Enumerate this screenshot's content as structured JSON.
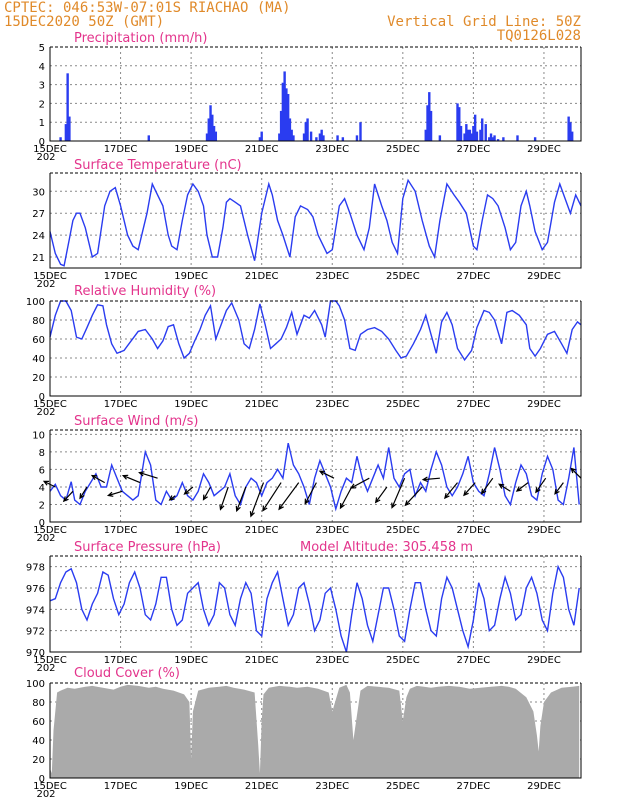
{
  "header": {
    "line1": "CPTEC:   046:53W-07:01S   RIACHAO (MA)",
    "line2": "15DEC2020 50Z (GMT)",
    "grid_note": "Vertical Grid Line: 50Z",
    "code": "TQ0126L028"
  },
  "x_axis": {
    "ticks": [
      "15DEC",
      "17DEC",
      "19DEC",
      "21DEC",
      "23DEC",
      "25DEC",
      "27DEC",
      "29DEC"
    ],
    "overflow_label": "202",
    "start_day": 15,
    "end_day": 30.05
  },
  "colors": {
    "series": "#2a3cf0",
    "cloud": "#aaaaaa",
    "title": "#e3348c",
    "header": "#e08a2a"
  },
  "chart_data": [
    {
      "type": "bar",
      "title": "Precipitation (mm/h)",
      "ylim": [
        0,
        5
      ],
      "yticks": [
        "0",
        "1",
        "2",
        "3",
        "4",
        "5"
      ],
      "x": [
        15.3,
        15.45,
        15.5,
        15.55,
        17.8,
        19.45,
        19.5,
        19.55,
        19.6,
        19.65,
        19.7,
        20.95,
        21.0,
        21.5,
        21.55,
        21.6,
        21.65,
        21.7,
        21.75,
        21.8,
        21.85,
        21.9,
        22.2,
        22.25,
        22.3,
        22.4,
        22.55,
        22.65,
        22.7,
        22.75,
        23.15,
        23.3,
        23.7,
        23.8,
        25.65,
        25.7,
        25.75,
        25.8,
        26.05,
        26.55,
        26.6,
        26.65,
        26.75,
        26.8,
        26.85,
        26.9,
        26.95,
        27.0,
        27.05,
        27.1,
        27.2,
        27.25,
        27.35,
        27.45,
        27.5,
        27.55,
        27.6,
        27.7,
        27.85,
        28.25,
        28.75,
        29.7,
        29.75,
        29.8
      ],
      "values": [
        0.2,
        0.9,
        3.6,
        1.3,
        0.3,
        0.4,
        1.2,
        1.9,
        1.4,
        0.8,
        0.5,
        0.2,
        0.5,
        0.4,
        1.6,
        3.1,
        3.7,
        2.8,
        2.5,
        1.2,
        0.6,
        0.3,
        0.4,
        1.0,
        1.2,
        0.5,
        0.2,
        0.4,
        0.6,
        0.3,
        0.3,
        0.2,
        0.3,
        1.0,
        0.6,
        1.9,
        2.6,
        1.6,
        0.3,
        2.0,
        1.8,
        0.8,
        0.4,
        0.9,
        0.6,
        0.6,
        0.4,
        0.8,
        1.4,
        0.5,
        0.6,
        1.2,
        0.9,
        0.2,
        0.4,
        0.2,
        0.3,
        0.1,
        0.2,
        0.3,
        0.2,
        1.3,
        1.0,
        0.5
      ]
    },
    {
      "type": "line",
      "title": "Surface Temperature (nC)",
      "ylim": [
        19.5,
        32.5
      ],
      "yticks": [
        "21",
        "24",
        "27",
        "30"
      ],
      "x": [
        15.0,
        15.15,
        15.3,
        15.4,
        15.55,
        15.65,
        15.75,
        15.85,
        16.0,
        16.2,
        16.35,
        16.55,
        16.7,
        16.85,
        17.0,
        17.2,
        17.35,
        17.5,
        17.75,
        17.9,
        18.0,
        18.2,
        18.35,
        18.45,
        18.6,
        18.75,
        18.9,
        19.05,
        19.2,
        19.35,
        19.45,
        19.6,
        19.75,
        19.9,
        20.0,
        20.1,
        20.25,
        20.4,
        20.6,
        20.8,
        21.0,
        21.2,
        21.3,
        21.45,
        21.6,
        21.8,
        21.95,
        22.1,
        22.3,
        22.45,
        22.6,
        22.85,
        23.0,
        23.2,
        23.35,
        23.5,
        23.7,
        23.9,
        24.05,
        24.2,
        24.4,
        24.55,
        24.7,
        24.85,
        25.0,
        25.15,
        25.35,
        25.55,
        25.75,
        25.9,
        26.05,
        26.25,
        26.45,
        26.6,
        26.8,
        27.0,
        27.1,
        27.25,
        27.4,
        27.55,
        27.7,
        27.9,
        28.05,
        28.2,
        28.35,
        28.5,
        28.6,
        28.75,
        28.95,
        29.1,
        29.3,
        29.45,
        29.6,
        29.75,
        29.9,
        30.05
      ],
      "values": [
        24.5,
        21.5,
        20.0,
        19.8,
        23.5,
        26.0,
        27.0,
        27.0,
        25.0,
        21.0,
        21.5,
        28.0,
        30.0,
        30.5,
        28.0,
        24.0,
        22.5,
        22.0,
        27.0,
        31.0,
        30.0,
        28.0,
        24.0,
        22.5,
        22.0,
        26.0,
        29.5,
        31.0,
        30.0,
        28.0,
        24.0,
        21.0,
        21.0,
        25.0,
        28.5,
        29.0,
        28.5,
        28.0,
        24.0,
        20.5,
        27.0,
        31.0,
        29.5,
        26.0,
        24.0,
        21.0,
        26.5,
        28.0,
        27.5,
        26.5,
        24.0,
        21.5,
        22.0,
        28.0,
        29.0,
        27.0,
        24.0,
        22.0,
        25.0,
        31.0,
        28.0,
        26.0,
        23.0,
        21.5,
        29.0,
        31.5,
        30.0,
        26.0,
        22.5,
        21.0,
        26.0,
        31.0,
        29.5,
        28.5,
        27.0,
        22.5,
        22.0,
        26.0,
        29.5,
        29.0,
        28.0,
        25.0,
        22.0,
        23.0,
        28.0,
        30.0,
        28.0,
        24.5,
        22.0,
        23.0,
        28.5,
        31.0,
        29.0,
        27.0,
        29.5,
        28.0
      ]
    },
    {
      "type": "line",
      "title": "Relative Humidity (%)",
      "ylim": [
        0,
        100
      ],
      "yticks": [
        "0",
        "20",
        "40",
        "60",
        "80",
        "100"
      ],
      "x": [
        15.0,
        15.15,
        15.3,
        15.45,
        15.6,
        15.75,
        15.9,
        16.05,
        16.2,
        16.35,
        16.5,
        16.6,
        16.75,
        16.9,
        17.1,
        17.3,
        17.5,
        17.7,
        17.9,
        18.05,
        18.2,
        18.35,
        18.5,
        18.65,
        18.8,
        18.95,
        19.1,
        19.25,
        19.4,
        19.55,
        19.7,
        19.85,
        20.0,
        20.15,
        20.35,
        20.5,
        20.65,
        20.8,
        20.95,
        21.1,
        21.25,
        21.4,
        21.55,
        21.7,
        21.85,
        22.0,
        22.2,
        22.35,
        22.5,
        22.7,
        22.8,
        22.95,
        23.1,
        23.2,
        23.35,
        23.5,
        23.65,
        23.8,
        24.0,
        24.2,
        24.4,
        24.6,
        24.8,
        24.95,
        25.1,
        25.3,
        25.5,
        25.65,
        25.8,
        25.95,
        26.1,
        26.25,
        26.4,
        26.55,
        26.75,
        26.95,
        27.1,
        27.3,
        27.45,
        27.6,
        27.8,
        27.95,
        28.1,
        28.3,
        28.5,
        28.6,
        28.75,
        28.9,
        29.1,
        29.3,
        29.5,
        29.65,
        29.8,
        29.95,
        30.05
      ],
      "values": [
        62,
        85,
        100,
        100,
        90,
        62,
        60,
        72,
        85,
        96,
        95,
        75,
        55,
        45,
        48,
        58,
        68,
        70,
        60,
        50,
        58,
        73,
        75,
        55,
        40,
        45,
        58,
        70,
        85,
        95,
        60,
        75,
        90,
        98,
        80,
        55,
        50,
        70,
        97,
        75,
        50,
        55,
        60,
        72,
        88,
        65,
        85,
        82,
        90,
        75,
        62,
        100,
        100,
        95,
        80,
        50,
        48,
        65,
        70,
        72,
        68,
        60,
        48,
        40,
        42,
        55,
        70,
        85,
        65,
        45,
        78,
        88,
        75,
        50,
        38,
        48,
        72,
        90,
        88,
        80,
        55,
        88,
        90,
        85,
        75,
        50,
        42,
        50,
        65,
        68,
        55,
        45,
        70,
        78,
        75
      ]
    },
    {
      "type": "line",
      "title": "Surface Wind (m/s)",
      "ylim": [
        0,
        10.5
      ],
      "yticks": [
        "0",
        "2",
        "4",
        "6",
        "8",
        "10"
      ],
      "x": [
        15.0,
        15.15,
        15.3,
        15.45,
        15.6,
        15.7,
        15.85,
        16.0,
        16.15,
        16.3,
        16.45,
        16.6,
        16.75,
        16.9,
        17.05,
        17.2,
        17.35,
        17.5,
        17.7,
        17.85,
        18.0,
        18.15,
        18.3,
        18.45,
        18.6,
        18.75,
        18.9,
        19.05,
        19.2,
        19.35,
        19.5,
        19.65,
        19.8,
        19.95,
        20.1,
        20.25,
        20.4,
        20.55,
        20.7,
        20.85,
        21.0,
        21.15,
        21.3,
        21.45,
        21.6,
        21.75,
        21.9,
        22.05,
        22.2,
        22.35,
        22.5,
        22.65,
        22.8,
        22.95,
        23.1,
        23.25,
        23.4,
        23.55,
        23.7,
        23.85,
        24.0,
        24.15,
        24.3,
        24.45,
        24.6,
        24.75,
        24.9,
        25.05,
        25.2,
        25.35,
        25.5,
        25.65,
        25.8,
        25.95,
        26.1,
        26.25,
        26.4,
        26.55,
        26.7,
        26.85,
        27.0,
        27.15,
        27.3,
        27.45,
        27.6,
        27.75,
        27.9,
        28.05,
        28.2,
        28.35,
        28.5,
        28.65,
        28.8,
        28.95,
        29.1,
        29.25,
        29.4,
        29.55,
        29.7,
        29.85,
        30.0
      ],
      "values": [
        3.5,
        4.3,
        3.0,
        2.5,
        4.6,
        2.5,
        2.0,
        3.5,
        4.5,
        5.5,
        4.0,
        4.0,
        6.5,
        5.0,
        3.5,
        3.0,
        2.5,
        3.0,
        8.0,
        6.5,
        2.5,
        2.0,
        3.5,
        2.5,
        3.0,
        4.5,
        3.0,
        2.5,
        3.5,
        5.5,
        4.5,
        3.0,
        3.5,
        4.0,
        5.5,
        3.0,
        2.0,
        4.0,
        5.0,
        4.5,
        3.0,
        4.5,
        5.0,
        6.0,
        5.0,
        9.0,
        6.5,
        5.5,
        4.0,
        2.0,
        5.0,
        7.0,
        5.5,
        4.0,
        1.5,
        3.5,
        5.0,
        4.5,
        7.5,
        5.0,
        3.5,
        5.0,
        6.5,
        5.0,
        8.5,
        5.0,
        4.0,
        5.5,
        6.0,
        3.0,
        4.5,
        3.5,
        6.0,
        8.0,
        6.5,
        4.0,
        3.0,
        4.0,
        5.5,
        7.5,
        4.5,
        3.5,
        3.0,
        5.5,
        8.5,
        6.0,
        3.0,
        2.0,
        4.5,
        6.5,
        5.5,
        3.0,
        2.5,
        5.5,
        7.5,
        6.0,
        2.5,
        2.0,
        5.0,
        8.5,
        2.0
      ]
    },
    {
      "type": "line",
      "title": "Surface Pressure (hPa)",
      "subtitle": "Model Altitude: 305.458  m",
      "ylim": [
        970,
        979
      ],
      "yticks": [
        "970",
        "972",
        "974",
        "976",
        "978"
      ],
      "x": [
        15.0,
        15.15,
        15.3,
        15.45,
        15.6,
        15.75,
        15.9,
        16.05,
        16.2,
        16.35,
        16.5,
        16.65,
        16.8,
        16.95,
        17.1,
        17.25,
        17.4,
        17.55,
        17.7,
        17.85,
        18.0,
        18.15,
        18.3,
        18.45,
        18.6,
        18.75,
        18.9,
        19.05,
        19.2,
        19.35,
        19.5,
        19.65,
        19.8,
        19.95,
        20.1,
        20.25,
        20.4,
        20.55,
        20.7,
        20.85,
        21.0,
        21.15,
        21.3,
        21.45,
        21.6,
        21.75,
        21.9,
        22.05,
        22.2,
        22.35,
        22.5,
        22.65,
        22.8,
        22.95,
        23.1,
        23.25,
        23.4,
        23.55,
        23.7,
        23.85,
        24.0,
        24.15,
        24.3,
        24.45,
        24.6,
        24.75,
        24.9,
        25.05,
        25.2,
        25.35,
        25.5,
        25.65,
        25.8,
        25.95,
        26.1,
        26.25,
        26.4,
        26.55,
        26.7,
        26.85,
        27.0,
        27.15,
        27.3,
        27.45,
        27.6,
        27.75,
        27.9,
        28.05,
        28.2,
        28.35,
        28.5,
        28.65,
        28.8,
        28.95,
        29.1,
        29.25,
        29.4,
        29.55,
        29.7,
        29.85,
        30.0
      ],
      "values": [
        974.8,
        975.0,
        976.5,
        977.5,
        977.8,
        976.5,
        974.0,
        973.0,
        974.5,
        975.5,
        977.5,
        977.2,
        975.0,
        973.5,
        974.5,
        976.5,
        977.5,
        976.0,
        973.5,
        973.0,
        974.5,
        977.0,
        977.0,
        974.0,
        972.5,
        973.0,
        975.5,
        976.0,
        976.5,
        974.0,
        972.5,
        973.5,
        976.5,
        976.0,
        973.5,
        972.5,
        975.0,
        976.5,
        975.5,
        972.0,
        971.5,
        975.0,
        976.5,
        977.5,
        975.0,
        972.5,
        973.5,
        976.0,
        976.5,
        974.5,
        972.0,
        973.0,
        975.5,
        976.0,
        974.0,
        971.5,
        970.0,
        973.5,
        976.5,
        975.0,
        972.5,
        971.0,
        973.5,
        976.0,
        976.0,
        974.0,
        971.5,
        971.0,
        974.0,
        976.5,
        976.5,
        974.0,
        972.0,
        971.5,
        975.0,
        977.0,
        976.0,
        974.0,
        972.0,
        970.5,
        973.0,
        976.5,
        975.0,
        972.0,
        972.5,
        975.0,
        977.0,
        975.5,
        973.0,
        973.5,
        976.0,
        977.0,
        975.5,
        973.0,
        972.0,
        975.5,
        978.0,
        977.0,
        974.0,
        972.5,
        976.0
      ]
    },
    {
      "type": "area",
      "title": "Cloud Cover (%)",
      "ylim": [
        0,
        100
      ],
      "yticks": [
        "0",
        "20",
        "40",
        "60",
        "80",
        "100"
      ],
      "x": [
        15.0,
        15.05,
        15.1,
        15.2,
        15.3,
        15.5,
        15.7,
        16.0,
        16.2,
        16.5,
        16.8,
        17.0,
        17.2,
        17.5,
        17.8,
        18.0,
        18.2,
        18.5,
        18.8,
        18.95,
        19.0,
        19.05,
        19.2,
        19.5,
        19.8,
        20.0,
        20.2,
        20.5,
        20.8,
        20.9,
        20.95,
        21.0,
        21.05,
        21.2,
        21.5,
        21.8,
        22.0,
        22.3,
        22.6,
        22.9,
        23.0,
        23.2,
        23.4,
        23.5,
        23.6,
        23.8,
        24.0,
        24.3,
        24.6,
        24.9,
        25.0,
        25.1,
        25.2,
        25.4,
        25.6,
        25.8,
        26.0,
        26.3,
        26.6,
        26.9,
        27.2,
        27.5,
        27.8,
        28.0,
        28.2,
        28.5,
        28.7,
        28.8,
        28.85,
        28.9,
        29.0,
        29.2,
        29.5,
        29.8,
        30.0
      ],
      "values": [
        10,
        5,
        50,
        90,
        92,
        95,
        94,
        96,
        97,
        95,
        93,
        96,
        98,
        97,
        95,
        96,
        94,
        92,
        88,
        80,
        20,
        70,
        92,
        95,
        96,
        97,
        95,
        93,
        90,
        35,
        5,
        60,
        88,
        95,
        97,
        96,
        95,
        96,
        94,
        90,
        70,
        95,
        98,
        90,
        40,
        92,
        97,
        96,
        95,
        92,
        60,
        85,
        94,
        97,
        96,
        95,
        96,
        97,
        96,
        94,
        95,
        96,
        97,
        96,
        94,
        85,
        70,
        45,
        28,
        55,
        80,
        90,
        95,
        96,
        97
      ]
    },
    {
      "type": "vector",
      "title": "wind-direction-arrows",
      "x": [
        15.15,
        15.65,
        16.05,
        16.55,
        17.05,
        17.55,
        18.05,
        18.55,
        19.05,
        19.55,
        20.05,
        20.55,
        21.05,
        21.55,
        22.05,
        22.55,
        23.05,
        23.55,
        24.05,
        24.55,
        25.05,
        25.55,
        26.05,
        26.55,
        27.05,
        27.55,
        28.05,
        28.55,
        29.05,
        29.55,
        30.05
      ],
      "y": [
        4.0,
        3.5,
        4.0,
        4.5,
        3.5,
        4.5,
        5.0,
        3.0,
        4.0,
        4.0,
        4.0,
        4.0,
        4.5,
        4.5,
        4.5,
        4.5,
        5.0,
        4.0,
        5.0,
        4.0,
        5.0,
        4.0,
        5.0,
        4.5,
        4.5,
        5.0,
        3.5,
        4.5,
        5.0,
        4.5,
        5.0
      ],
      "u": [
        -1.6,
        -1.3,
        -1.0,
        -1.8,
        -2.0,
        -2.4,
        -2.6,
        -0.8,
        -1.2,
        -1.0,
        -1.1,
        -1.3,
        -1.8,
        -2.6,
        -2.8,
        -1.6,
        -2.0,
        -1.6,
        -2.6,
        -1.6,
        -1.8,
        -2.4,
        -2.4,
        -1.8,
        -1.6,
        -1.6,
        -1.6,
        -1.6,
        -1.4,
        -1.2,
        -1.4
      ],
      "v": [
        0.8,
        -1.4,
        -1.6,
        1.0,
        -0.6,
        1.0,
        0.8,
        -0.6,
        -1.0,
        -1.8,
        -3.2,
        -3.4,
        -4.8,
        -4.0,
        -3.8,
        -3.0,
        1.0,
        -3.0,
        -1.4,
        -2.2,
        -4.2,
        -2.6,
        -0.2,
        -2.2,
        -1.8,
        -2.2,
        1.0,
        -1.2,
        -2.0,
        -1.6,
        1.4
      ]
    }
  ]
}
